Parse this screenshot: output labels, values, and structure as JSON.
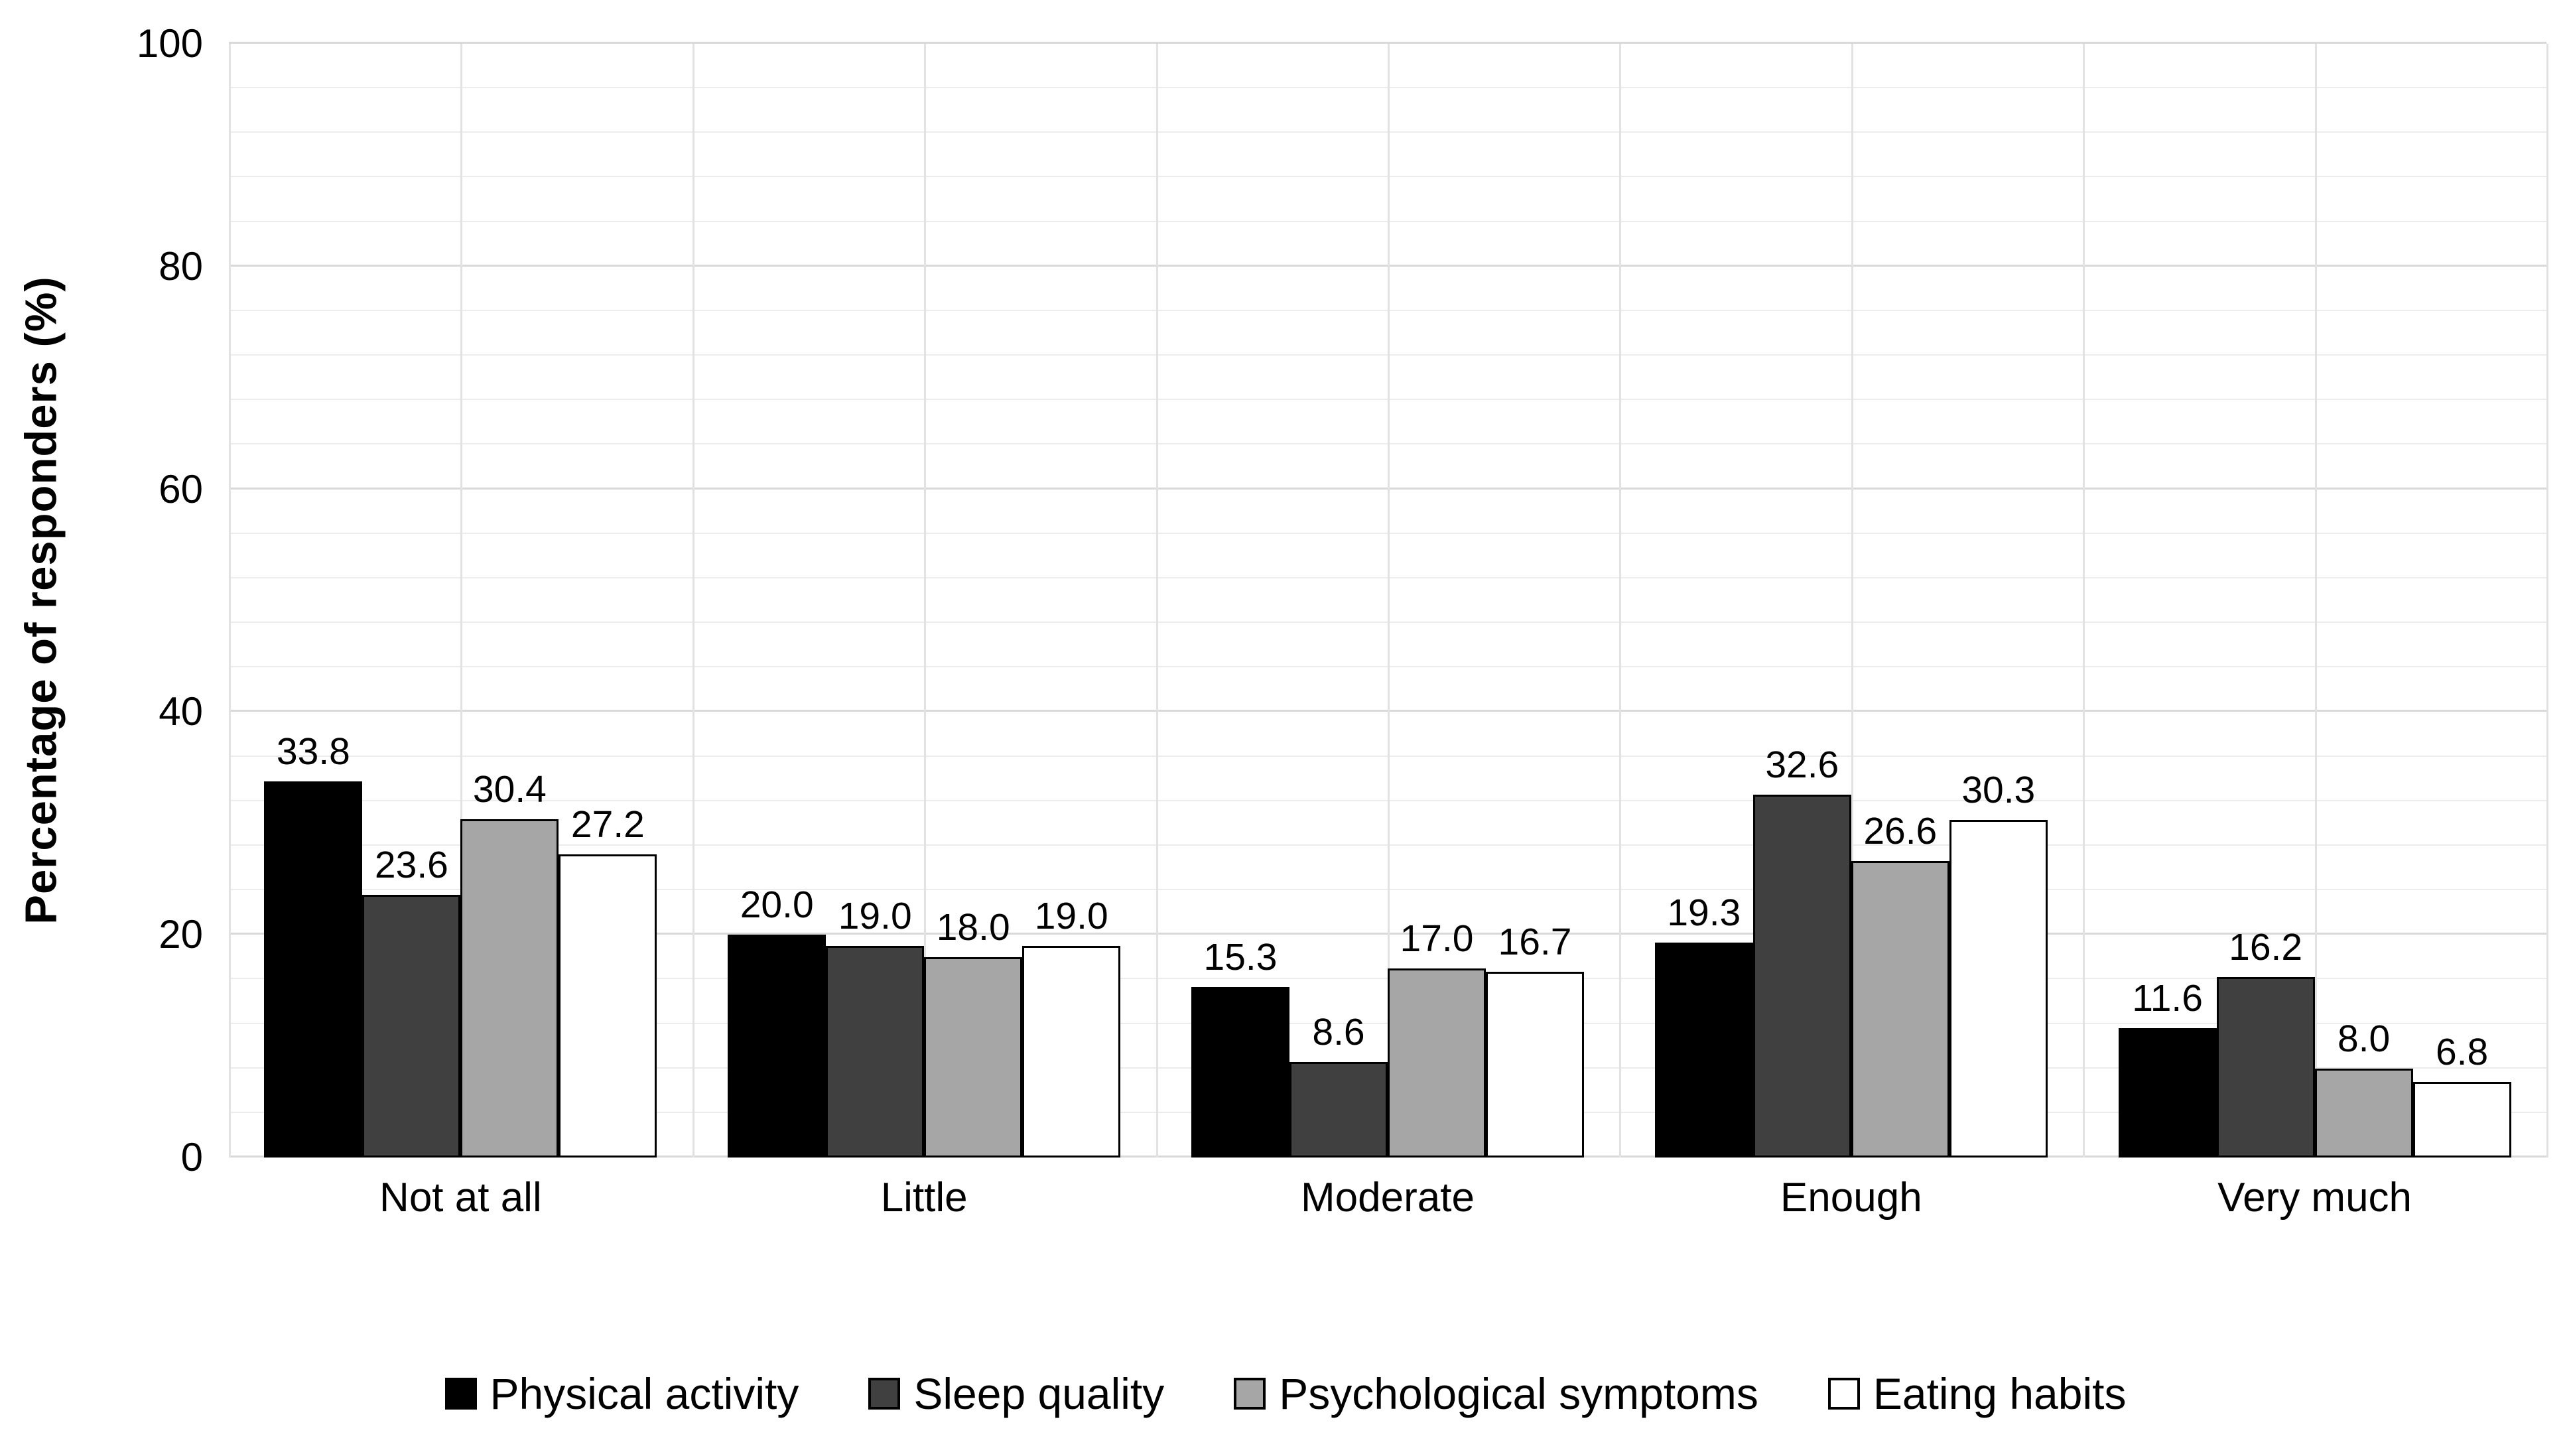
{
  "chart_data": {
    "type": "bar",
    "title": "",
    "xlabel": "",
    "ylabel": "Percentage of responders (%)",
    "categories": [
      "Not at all",
      "Little",
      "Moderate",
      "Enough",
      "Very much"
    ],
    "series": [
      {
        "name": "Physical activity",
        "color": "#000000",
        "values": [
          33.8,
          20.0,
          15.3,
          19.3,
          11.6
        ]
      },
      {
        "name": "Sleep quality",
        "color": "#404040",
        "values": [
          23.6,
          19.0,
          8.6,
          32.6,
          16.2
        ]
      },
      {
        "name": "Psychological symptoms",
        "color": "#a6a6a6",
        "values": [
          30.4,
          18.0,
          17.0,
          26.6,
          8.0
        ]
      },
      {
        "name": "Eating habits",
        "color": "#ffffff",
        "values": [
          27.2,
          19.0,
          16.7,
          30.3,
          6.8
        ]
      }
    ],
    "ylim": [
      0,
      100
    ],
    "yticks": [
      0,
      20,
      40,
      60,
      80,
      100
    ],
    "minor_unit": 4,
    "major_unit": 20,
    "grid": "horizontal minor+major, vertical half-category separators",
    "legend_position": "bottom",
    "data_labels": true,
    "label_decimals": 1
  },
  "colors": {
    "background": "#ffffff",
    "text": "#000000",
    "gridline_minor": "#ececec",
    "gridline_major": "#d9d9d9",
    "gridline_vertical": "#e2e2e2",
    "bar_outline": "#000000"
  }
}
